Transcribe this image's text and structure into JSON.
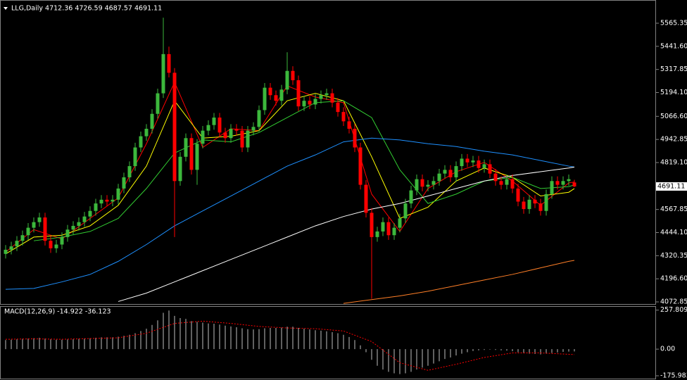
{
  "chart_data": [
    {
      "type": "candlestick",
      "title": "LLG,Daily  4712.36 4726.59 4687.57 4691.11",
      "up_color": "#3cb83c",
      "down_color": "#ff0000",
      "open": [
        4330,
        4352,
        4370,
        4400,
        4430,
        4470,
        4500,
        4525,
        4400,
        4360,
        4380,
        4420,
        4460,
        4480,
        4500,
        4530,
        4560,
        4600,
        4620,
        4610,
        4620,
        4680,
        4740,
        4800,
        4900,
        4960,
        5000,
        5080,
        5190,
        5400,
        5300,
        4720,
        4850,
        4950,
        4780,
        4920,
        4990,
        5020,
        5060,
        4980,
        4950,
        5000,
        4990,
        4900,
        4990,
        5010,
        5100,
        5220,
        5180,
        5150,
        5210,
        5310,
        5260,
        5120,
        5150,
        5130,
        5160,
        5180,
        5190,
        5140,
        5090,
        5040,
        5000,
        4900,
        4700,
        4550,
        4420,
        4450,
        4500,
        4430,
        4470,
        4520,
        4600,
        4670,
        4730,
        4690,
        4700,
        4720,
        4760,
        4780,
        4740,
        4800,
        4840,
        4820,
        4830,
        4790,
        4810,
        4760,
        4720,
        4700,
        4730,
        4680,
        4610,
        4570,
        4620,
        4600,
        4560,
        4650,
        4720,
        4700,
        4720,
        4712.36
      ],
      "high": [
        4377,
        4395,
        4425,
        4455,
        4495,
        4525,
        4550,
        4550,
        4425,
        4405,
        4445,
        4485,
        4505,
        4525,
        4555,
        4585,
        4625,
        4645,
        4645,
        4645,
        4705,
        4765,
        4825,
        4925,
        4985,
        5025,
        5105,
        5215,
        5595,
        5440,
        5325,
        4875,
        4975,
        4975,
        4945,
        5015,
        5045,
        5085,
        5085,
        5005,
        5025,
        5025,
        5015,
        5015,
        5035,
        5125,
        5245,
        5245,
        5205,
        5235,
        5410,
        5335,
        5285,
        5175,
        5175,
        5185,
        5205,
        5215,
        5215,
        5165,
        5115,
        5065,
        5025,
        4925,
        4725,
        4575,
        4475,
        4525,
        4525,
        4495,
        4545,
        4625,
        4695,
        4755,
        4755,
        4725,
        4745,
        4785,
        4805,
        4805,
        4825,
        4865,
        4865,
        4855,
        4855,
        4835,
        4835,
        4785,
        4745,
        4755,
        4755,
        4705,
        4635,
        4645,
        4645,
        4625,
        4675,
        4745,
        4745,
        4745,
        4755,
        4726.59
      ],
      "low": [
        4305,
        4327,
        4345,
        4375,
        4405,
        4445,
        4475,
        4375,
        4335,
        4335,
        4355,
        4395,
        4435,
        4455,
        4475,
        4505,
        4535,
        4575,
        4585,
        4585,
        4595,
        4655,
        4715,
        4775,
        4875,
        4935,
        4975,
        5055,
        5165,
        5275,
        4420,
        4695,
        4825,
        4755,
        4700,
        4895,
        4965,
        4995,
        4955,
        4925,
        4925,
        4965,
        4875,
        4875,
        4965,
        4985,
        5075,
        5155,
        5125,
        5125,
        5185,
        5235,
        5095,
        5095,
        5105,
        5105,
        5135,
        5155,
        5115,
        5065,
        5015,
        4975,
        4875,
        4675,
        4525,
        4090,
        4395,
        4425,
        4405,
        4405,
        4445,
        4495,
        4575,
        4645,
        4665,
        4665,
        4675,
        4695,
        4735,
        4715,
        4715,
        4775,
        4795,
        4795,
        4765,
        4765,
        4735,
        4695,
        4675,
        4675,
        4655,
        4585,
        4545,
        4545,
        4575,
        4535,
        4535,
        4625,
        4675,
        4675,
        4695,
        4687.57
      ],
      "close": [
        4352,
        4370,
        4400,
        4430,
        4470,
        4500,
        4525,
        4400,
        4360,
        4380,
        4420,
        4460,
        4480,
        4500,
        4530,
        4560,
        4600,
        4620,
        4610,
        4620,
        4680,
        4740,
        4800,
        4900,
        4960,
        5000,
        5080,
        5190,
        5400,
        5300,
        4720,
        4850,
        4950,
        4780,
        4920,
        4990,
        5020,
        5060,
        4980,
        4950,
        5000,
        4990,
        4900,
        4990,
        5010,
        5100,
        5220,
        5180,
        5150,
        5210,
        5310,
        5260,
        5120,
        5150,
        5130,
        5160,
        5180,
        5190,
        5140,
        5090,
        5040,
        5000,
        4900,
        4700,
        4550,
        4420,
        4450,
        4500,
        4430,
        4470,
        4520,
        4600,
        4670,
        4730,
        4690,
        4700,
        4720,
        4760,
        4780,
        4740,
        4800,
        4840,
        4820,
        4830,
        4790,
        4810,
        4760,
        4720,
        4700,
        4730,
        4680,
        4610,
        4570,
        4620,
        4600,
        4560,
        4650,
        4720,
        4700,
        4720,
        4730,
        4691.11
      ],
      "ma": {
        "x": [
          0,
          5,
          10,
          15,
          20,
          25,
          30,
          35,
          40,
          45,
          50,
          55,
          60,
          65,
          70,
          75,
          80,
          85,
          90,
          95,
          100,
          101
        ],
        "series": [
          {
            "color": "#ff0000",
            "values": [
              4340,
              4460,
              4410,
              4520,
              4630,
              4920,
              5250,
              4900,
              5000,
              4990,
              5230,
              5170,
              5140,
              4650,
              4450,
              4680,
              4770,
              4820,
              4720,
              4590,
              4710,
              4715
            ]
          },
          {
            "color": "#ffff00",
            "values": [
              4330,
              4420,
              4430,
              4480,
              4590,
              4800,
              5150,
              4950,
              4960,
              4990,
              5150,
              5190,
              5150,
              4850,
              4520,
              4580,
              4720,
              4790,
              4740,
              4640,
              4660,
              4680
            ]
          },
          {
            "color": "#32cd32",
            "values": [
              null,
              4400,
              4420,
              4450,
              4520,
              4680,
              4870,
              4940,
              4930,
              4980,
              5060,
              5140,
              5150,
              5060,
              4780,
              4600,
              4650,
              4720,
              4740,
              4680,
              4690,
              4700
            ]
          },
          {
            "color": "#1e90ff",
            "values": [
              4140,
              4145,
              4180,
              4220,
              4290,
              4380,
              4480,
              4560,
              4640,
              4720,
              4800,
              4860,
              4930,
              4950,
              4940,
              4920,
              4905,
              4880,
              4860,
              4830,
              4800,
              4795
            ]
          },
          {
            "color": "#ffffff",
            "values": [
              null,
              null,
              null,
              null,
              4075,
              4120,
              4180,
              4240,
              4300,
              4360,
              4420,
              4480,
              4530,
              4570,
              4600,
              4640,
              4680,
              4720,
              4750,
              4770,
              4790,
              4795
            ]
          },
          {
            "color": "#ff7f27",
            "values": [
              null,
              null,
              null,
              null,
              null,
              null,
              null,
              null,
              null,
              null,
              null,
              null,
              4065,
              4085,
              4105,
              4130,
              4160,
              4190,
              4220,
              4255,
              4290,
              4295
            ]
          }
        ]
      },
      "ylim": [
        4061.5,
        5670.9
      ],
      "yticks": [
        5565.35,
        {
          "value": 5441.6,
          "label": "5441.60"
        },
        5317.85,
        {
          "value": 5194.1,
          "label": "5194.10"
        },
        {
          "value": 5066.6,
          "label": "5066.60"
        },
        4942.85,
        {
          "value": 4819.1,
          "label": "4819.10"
        },
        4567.85,
        {
          "value": 4444.1,
          "label": "4444.10"
        },
        4320.35,
        {
          "value": 4196.6,
          "label": "4196.60"
        },
        4072.85
      ],
      "last_price": 4691.11
    },
    {
      "type": "macd",
      "title": "MACD(12,26,9) -14.922 -36.123",
      "color": "#c0c0c0",
      "values": [
        60,
        62,
        65,
        68,
        70,
        72,
        75,
        70,
        65,
        62,
        62,
        64,
        66,
        68,
        70,
        72,
        75,
        78,
        78,
        78,
        82,
        88,
        95,
        105,
        120,
        135,
        160,
        190,
        240,
        255,
        220,
        205,
        200,
        185,
        180,
        175,
        170,
        168,
        162,
        155,
        150,
        145,
        138,
        132,
        130,
        132,
        138,
        140,
        140,
        142,
        148,
        148,
        140,
        135,
        130,
        125,
        122,
        118,
        112,
        105,
        95,
        80,
        60,
        25,
        -20,
        -70,
        -110,
        -135,
        -150,
        -160,
        -165,
        -160,
        -150,
        -135,
        -122,
        -110,
        -95,
        -80,
        -65,
        -55,
        -42,
        -30,
        -20,
        -12,
        -8,
        -5,
        -3,
        -5,
        -8,
        -10,
        -14,
        -20,
        -28,
        -30,
        -32,
        -35,
        -30,
        -25,
        -22,
        -18,
        -16,
        -14.922
      ],
      "signal": {
        "color": "#ff0000",
        "x": [
          0,
          5,
          10,
          15,
          20,
          25,
          30,
          35,
          40,
          45,
          50,
          55,
          60,
          65,
          70,
          75,
          80,
          85,
          90,
          95,
          100,
          101
        ],
        "values": [
          65,
          68,
          65,
          70,
          75,
          105,
          170,
          185,
          170,
          150,
          140,
          135,
          120,
          50,
          -90,
          -140,
          -100,
          -55,
          -25,
          -25,
          -34,
          -36.123
        ]
      },
      "ylim": [
        -190,
        275
      ],
      "yticks": [
        257.809,
        {
          "value": 0,
          "label": "0.00"
        },
        -175.983
      ]
    }
  ]
}
